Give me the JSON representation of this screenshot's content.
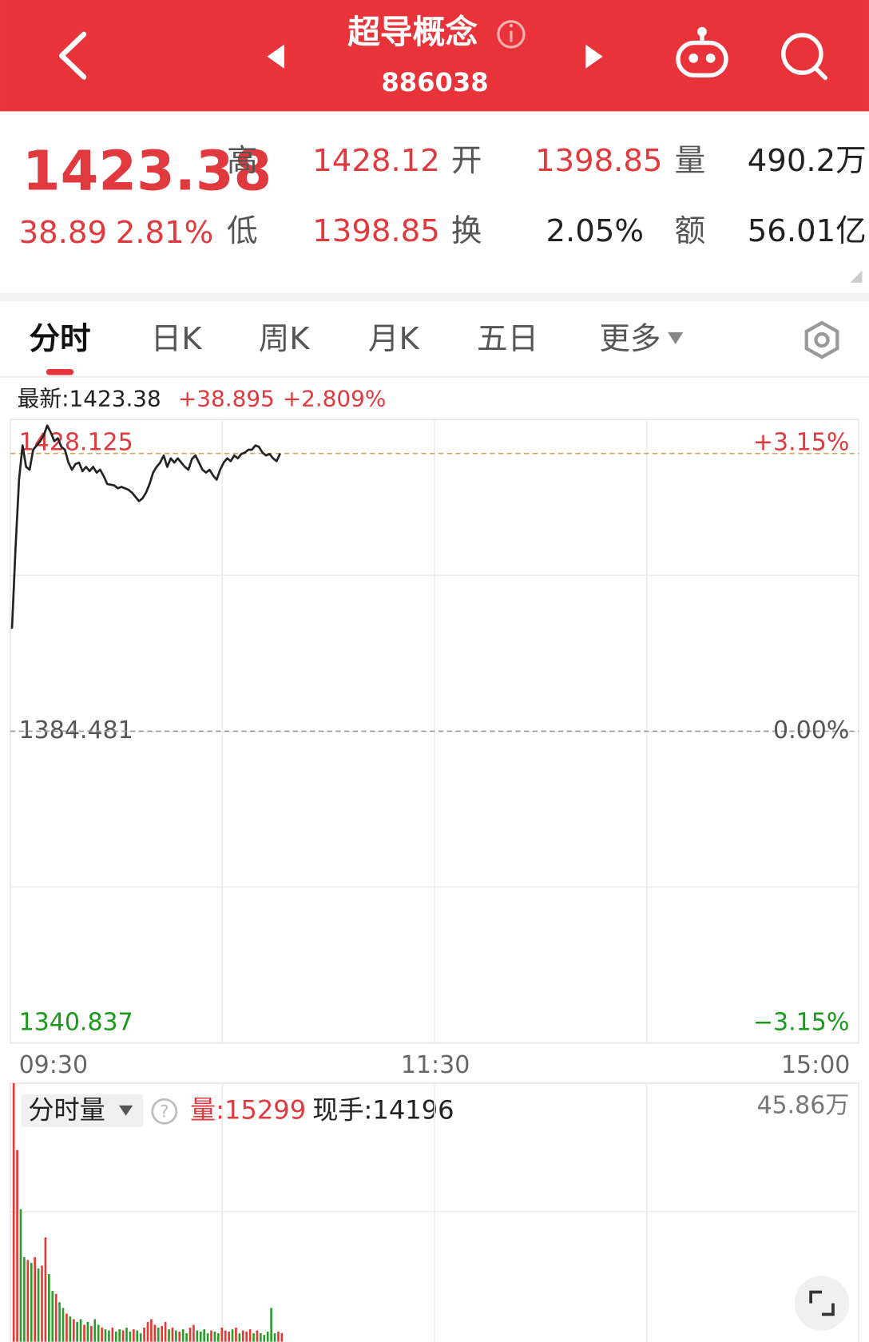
{
  "header": {
    "title": "超导概念",
    "code": "886038"
  },
  "quote": {
    "price": 1423.38,
    "change": 38.89,
    "pct": "2.81%",
    "stats": [
      {
        "label": "高",
        "value": "1428.12"
      },
      {
        "label": "开",
        "value": "1398.85"
      },
      {
        "label": "量",
        "value": "490.2万"
      },
      {
        "label": "低",
        "value": "1398.85"
      },
      {
        "label": "换",
        "value": "2.05%"
      },
      {
        "label": "额",
        "value": "56.01亿"
      }
    ]
  },
  "tabs": [
    "分时",
    "日K",
    "周K",
    "月K",
    "五日",
    "更多"
  ],
  "chart_data": [
    {
      "type": "line",
      "latest_label": "最新:",
      "latest": 1423.38,
      "latest_change": "+38.895",
      "latest_pct": "+2.809%",
      "x": [
        0,
        1,
        2,
        3,
        4,
        5,
        6,
        7,
        8,
        9,
        10,
        11,
        12,
        13,
        14,
        15,
        16,
        17,
        18,
        19,
        20,
        21,
        22,
        23,
        24,
        25,
        26,
        27,
        28,
        29,
        30,
        31,
        32,
        33,
        34,
        35,
        36,
        37,
        38,
        39,
        40,
        41,
        42,
        43,
        44,
        45,
        46,
        47,
        48,
        49,
        50,
        51,
        52,
        53,
        54,
        55,
        56,
        57,
        58,
        59,
        60,
        61,
        62,
        63,
        64,
        65,
        66,
        67,
        68,
        69,
        70,
        71,
        72,
        73,
        74,
        75,
        76
      ],
      "values": [
        1398.85,
        1410.1,
        1419.7,
        1424.5,
        1421.5,
        1421.1,
        1423.9,
        1424.5,
        1425.1,
        1425.9,
        1427.3,
        1426.3,
        1425.1,
        1425.5,
        1424.3,
        1423.9,
        1422.1,
        1421.1,
        1421.9,
        1422.1,
        1420.9,
        1421.5,
        1420.9,
        1421.5,
        1420.7,
        1421.1,
        1420.2,
        1419.1,
        1419.0,
        1418.9,
        1418.5,
        1418.7,
        1418.5,
        1418.3,
        1417.9,
        1417.3,
        1416.7,
        1417.1,
        1417.9,
        1419.1,
        1420.7,
        1421.5,
        1422.1,
        1423.1,
        1421.5,
        1422.7,
        1422.1,
        1422.7,
        1422.1,
        1421.5,
        1421.1,
        1422.6,
        1423.1,
        1422.1,
        1421.1,
        1420.7,
        1421.1,
        1420.3,
        1419.7,
        1421.1,
        1422.1,
        1422.7,
        1422.3,
        1423.1,
        1422.7,
        1423.3,
        1423.5,
        1423.9,
        1423.9,
        1424.5,
        1424.3,
        1423.5,
        1423.1,
        1423.3,
        1422.7,
        1422.3,
        1423.38
      ],
      "color": "#222222",
      "xlim": [
        0,
        240
      ],
      "xticks": [
        {
          "value": 0,
          "label": "09:30"
        },
        {
          "value": 120,
          "label": "11:30"
        },
        {
          "value": 240,
          "label": "15:00"
        }
      ],
      "ylim": [
        1340.837,
        1428.125
      ],
      "yticks": [
        1428.125,
        1384.481,
        1340.837
      ],
      "y2lim": [
        -3.15,
        3.15
      ],
      "y2ticks": [
        {
          "value": 3.15,
          "label": "+3.15%"
        },
        {
          "value": 0,
          "label": "0.00%"
        },
        {
          "value": -3.15,
          "label": "−3.15%"
        }
      ],
      "grid": true
    },
    {
      "type": "bar",
      "selector": "分时量",
      "volume_label": "量:",
      "volume": 15299,
      "hand_label": "现手:",
      "hand": 14196,
      "x": [
        0,
        1,
        2,
        3,
        4,
        5,
        6,
        7,
        8,
        9,
        10,
        11,
        12,
        13,
        14,
        15,
        16,
        17,
        18,
        19,
        20,
        21,
        22,
        23,
        24,
        25,
        26,
        27,
        28,
        29,
        30,
        31,
        32,
        33,
        34,
        35,
        36,
        37,
        38,
        39,
        40,
        41,
        42,
        43,
        44,
        45,
        46,
        47,
        48,
        49,
        50,
        51,
        52,
        53,
        54,
        55,
        56,
        57,
        58,
        59,
        60,
        61,
        62,
        63,
        64,
        65,
        66,
        67,
        68,
        69,
        70,
        71,
        72,
        73,
        74,
        75,
        76
      ],
      "values": [
        458600,
        340000,
        235000,
        150000,
        145000,
        140000,
        150000,
        130000,
        135000,
        185000,
        120000,
        90000,
        85000,
        70000,
        60000,
        50000,
        45000,
        40000,
        35000,
        40000,
        30000,
        35000,
        28000,
        40000,
        30000,
        25000,
        22000,
        20000,
        25000,
        18000,
        22000,
        20000,
        25000,
        18000,
        22000,
        20000,
        15000,
        25000,
        35000,
        40000,
        30000,
        25000,
        28000,
        35000,
        22000,
        25000,
        20000,
        18000,
        22000,
        15000,
        25000,
        30000,
        20000,
        18000,
        22000,
        15000,
        20000,
        18000,
        15000,
        25000,
        20000,
        18000,
        22000,
        25000,
        15000,
        20000,
        18000,
        22000,
        15000,
        20000,
        15000,
        12000,
        18000,
        60000,
        15000,
        18000,
        15299
      ],
      "colors": [
        "#e53935",
        "#e53935",
        "#2e9b2e",
        "#2e9b2e",
        "#e53935",
        "#2e9b2e",
        "#e53935",
        "#2e9b2e",
        "#e53935",
        "#e53935",
        "#2e9b2e",
        "#2e9b2e",
        "#e53935",
        "#2e9b2e",
        "#2e9b2e",
        "#e53935",
        "#2e9b2e",
        "#e53935",
        "#2e9b2e",
        "#2e9b2e",
        "#e53935",
        "#2e9b2e",
        "#e53935",
        "#2e9b2e",
        "#2e9b2e",
        "#e53935",
        "#2e9b2e",
        "#2e9b2e",
        "#e53935",
        "#2e9b2e",
        "#2e9b2e",
        "#e53935",
        "#2e9b2e",
        "#2e9b2e",
        "#e53935",
        "#2e9b2e",
        "#2e9b2e",
        "#e53935",
        "#e53935",
        "#e53935",
        "#e53935",
        "#2e9b2e",
        "#e53935",
        "#e53935",
        "#2e9b2e",
        "#e53935",
        "#2e9b2e",
        "#e53935",
        "#2e9b2e",
        "#2e9b2e",
        "#e53935",
        "#e53935",
        "#2e9b2e",
        "#2e9b2e",
        "#2e9b2e",
        "#2e9b2e",
        "#e53935",
        "#2e9b2e",
        "#2e9b2e",
        "#e53935",
        "#e53935",
        "#e53935",
        "#2e9b2e",
        "#e53935",
        "#2e9b2e",
        "#e53935",
        "#e53935",
        "#e53935",
        "#2e9b2e",
        "#e53935",
        "#2e9b2e",
        "#2e9b2e",
        "#2e9b2e",
        "#2e9b2e",
        "#2e9b2e",
        "#e53935",
        "#e53935"
      ],
      "xlim": [
        0,
        240
      ],
      "ylim": [
        0,
        458600
      ],
      "yticks": [
        {
          "value": 458600,
          "label": "45.86万"
        }
      ]
    }
  ]
}
